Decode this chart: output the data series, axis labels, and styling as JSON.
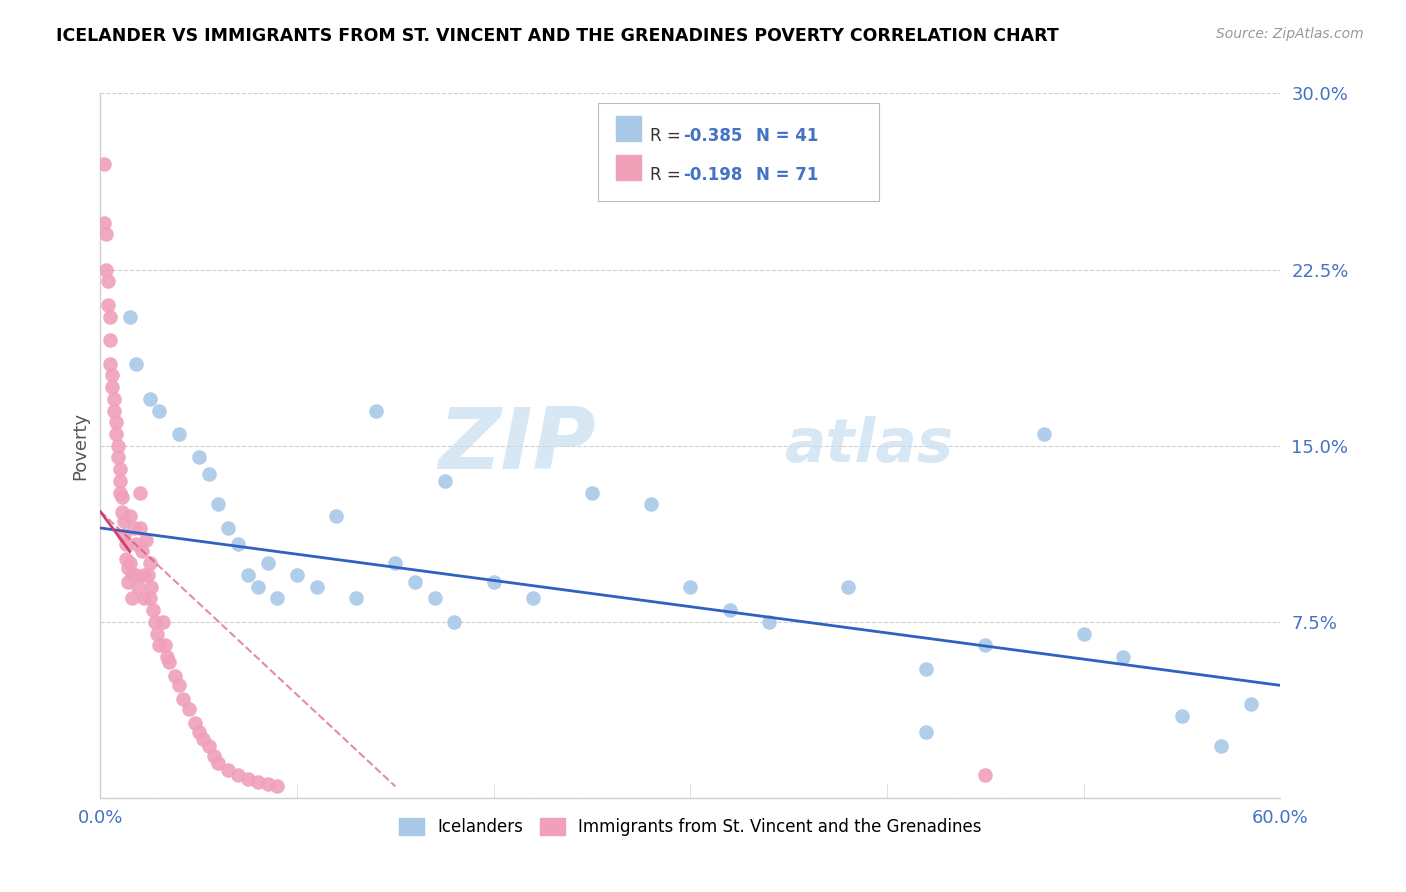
{
  "title": "ICELANDER VS IMMIGRANTS FROM ST. VINCENT AND THE GRENADINES POVERTY CORRELATION CHART",
  "source": "Source: ZipAtlas.com",
  "ylabel_label": "Poverty",
  "xlim": [
    0.0,
    0.6
  ],
  "ylim": [
    0.0,
    0.3
  ],
  "xticks": [
    0.0,
    0.1,
    0.2,
    0.3,
    0.4,
    0.5,
    0.6
  ],
  "xticklabels_sparse": [
    "0.0%",
    "",
    "",
    "",
    "",
    "",
    "60.0%"
  ],
  "yticks": [
    0.0,
    0.075,
    0.15,
    0.225,
    0.3
  ],
  "yticklabels": [
    "",
    "7.5%",
    "15.0%",
    "22.5%",
    "30.0%"
  ],
  "blue_color": "#a8c8e8",
  "pink_color": "#f0a0b8",
  "blue_line_color": "#3060c0",
  "pink_line_color": "#d04070",
  "grid_color": "#d0d0d0",
  "watermark_zip": "ZIP",
  "watermark_atlas": "atlas",
  "label1": "Icelanders",
  "label2": "Immigrants from St. Vincent and the Grenadines",
  "legend_R1_val": "-0.385",
  "legend_N1": "41",
  "legend_R2_val": "-0.198",
  "legend_N2": "71",
  "blue_scatter_x": [
    0.015,
    0.018,
    0.025,
    0.03,
    0.04,
    0.05,
    0.055,
    0.06,
    0.065,
    0.07,
    0.075,
    0.08,
    0.085,
    0.09,
    0.1,
    0.11,
    0.12,
    0.13,
    0.14,
    0.15,
    0.16,
    0.17,
    0.175,
    0.18,
    0.2,
    0.22,
    0.25,
    0.28,
    0.3,
    0.32,
    0.34,
    0.38,
    0.42,
    0.45,
    0.48,
    0.5,
    0.52,
    0.55,
    0.57,
    0.585,
    0.42
  ],
  "blue_scatter_y": [
    0.205,
    0.185,
    0.17,
    0.165,
    0.155,
    0.145,
    0.138,
    0.125,
    0.115,
    0.108,
    0.095,
    0.09,
    0.1,
    0.085,
    0.095,
    0.09,
    0.12,
    0.085,
    0.165,
    0.1,
    0.092,
    0.085,
    0.135,
    0.075,
    0.092,
    0.085,
    0.13,
    0.125,
    0.09,
    0.08,
    0.075,
    0.09,
    0.055,
    0.065,
    0.155,
    0.07,
    0.06,
    0.035,
    0.022,
    0.04,
    0.028
  ],
  "pink_scatter_x": [
    0.002,
    0.002,
    0.003,
    0.003,
    0.004,
    0.004,
    0.005,
    0.005,
    0.005,
    0.006,
    0.006,
    0.007,
    0.007,
    0.008,
    0.008,
    0.009,
    0.009,
    0.01,
    0.01,
    0.01,
    0.011,
    0.011,
    0.012,
    0.012,
    0.013,
    0.013,
    0.014,
    0.014,
    0.015,
    0.015,
    0.016,
    0.016,
    0.017,
    0.018,
    0.018,
    0.019,
    0.02,
    0.02,
    0.021,
    0.022,
    0.022,
    0.023,
    0.024,
    0.025,
    0.025,
    0.026,
    0.027,
    0.028,
    0.029,
    0.03,
    0.032,
    0.033,
    0.034,
    0.035,
    0.038,
    0.04,
    0.042,
    0.045,
    0.048,
    0.05,
    0.052,
    0.055,
    0.058,
    0.06,
    0.065,
    0.07,
    0.075,
    0.08,
    0.085,
    0.09,
    0.45
  ],
  "pink_scatter_y": [
    0.27,
    0.245,
    0.24,
    0.225,
    0.22,
    0.21,
    0.205,
    0.195,
    0.185,
    0.18,
    0.175,
    0.17,
    0.165,
    0.16,
    0.155,
    0.15,
    0.145,
    0.14,
    0.135,
    0.13,
    0.128,
    0.122,
    0.118,
    0.112,
    0.108,
    0.102,
    0.098,
    0.092,
    0.12,
    0.1,
    0.095,
    0.085,
    0.115,
    0.108,
    0.095,
    0.09,
    0.13,
    0.115,
    0.105,
    0.095,
    0.085,
    0.11,
    0.095,
    0.1,
    0.085,
    0.09,
    0.08,
    0.075,
    0.07,
    0.065,
    0.075,
    0.065,
    0.06,
    0.058,
    0.052,
    0.048,
    0.042,
    0.038,
    0.032,
    0.028,
    0.025,
    0.022,
    0.018,
    0.015,
    0.012,
    0.01,
    0.008,
    0.007,
    0.006,
    0.005,
    0.01
  ],
  "blue_line_x0": 0.0,
  "blue_line_x1": 0.6,
  "blue_line_y0": 0.115,
  "blue_line_y1": 0.048,
  "pink_line_solid_x0": 0.0,
  "pink_line_solid_x1": 0.015,
  "pink_line_solid_y0": 0.122,
  "pink_line_solid_y1": 0.105,
  "pink_line_full_x0": 0.0,
  "pink_line_full_x1": 0.15,
  "pink_line_full_y0": 0.122,
  "pink_line_full_y1": 0.005
}
